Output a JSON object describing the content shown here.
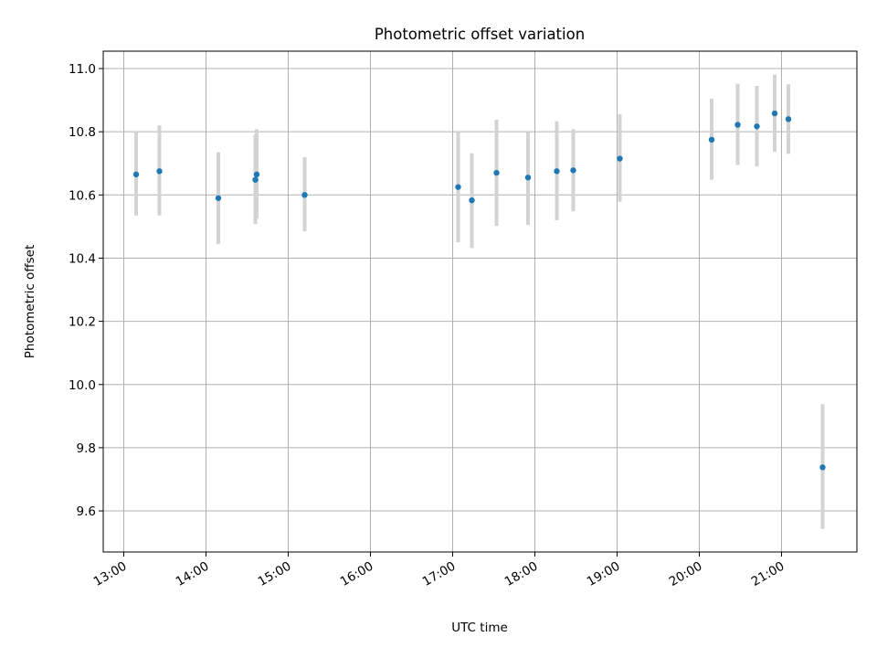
{
  "chart_data": {
    "type": "scatter",
    "title": "Photometric offset variation",
    "xlabel": "UTC time",
    "ylabel": "Photometric offset",
    "x_tick_labels": [
      "13:00",
      "14:00",
      "15:00",
      "16:00",
      "17:00",
      "18:00",
      "19:00",
      "20:00",
      "21:00"
    ],
    "y_tick_labels": [
      "9.6",
      "9.8",
      "10.0",
      "10.2",
      "10.4",
      "10.6",
      "10.8",
      "11.0"
    ],
    "y_ticks": [
      9.6,
      9.8,
      10.0,
      10.2,
      10.4,
      10.6,
      10.8,
      11.0
    ],
    "xlim": [
      "12:45",
      "21:55"
    ],
    "ylim": [
      9.47,
      11.055
    ],
    "grid": true,
    "error_bar_color": "#d3d3d3",
    "marker_color": "#1f77b4",
    "points": [
      {
        "x": "13:09",
        "y": 10.665,
        "ylo": 10.535,
        "yhi": 10.8
      },
      {
        "x": "13:26",
        "y": 10.675,
        "ylo": 10.535,
        "yhi": 10.82
      },
      {
        "x": "14:09",
        "y": 10.59,
        "ylo": 10.445,
        "yhi": 10.735
      },
      {
        "x": "14:36",
        "y": 10.648,
        "ylo": 10.508,
        "yhi": 10.79
      },
      {
        "x": "14:37",
        "y": 10.665,
        "ylo": 10.525,
        "yhi": 10.808
      },
      {
        "x": "15:12",
        "y": 10.6,
        "ylo": 10.485,
        "yhi": 10.72
      },
      {
        "x": "17:04",
        "y": 10.625,
        "ylo": 10.45,
        "yhi": 10.8
      },
      {
        "x": "17:14",
        "y": 10.583,
        "ylo": 10.432,
        "yhi": 10.732
      },
      {
        "x": "17:32",
        "y": 10.67,
        "ylo": 10.502,
        "yhi": 10.838
      },
      {
        "x": "17:55",
        "y": 10.655,
        "ylo": 10.505,
        "yhi": 10.8
      },
      {
        "x": "18:16",
        "y": 10.675,
        "ylo": 10.52,
        "yhi": 10.833
      },
      {
        "x": "18:28",
        "y": 10.678,
        "ylo": 10.548,
        "yhi": 10.808
      },
      {
        "x": "19:02",
        "y": 10.715,
        "ylo": 10.578,
        "yhi": 10.855
      },
      {
        "x": "20:09",
        "y": 10.775,
        "ylo": 10.648,
        "yhi": 10.905
      },
      {
        "x": "20:28",
        "y": 10.822,
        "ylo": 10.695,
        "yhi": 10.952
      },
      {
        "x": "20:42",
        "y": 10.817,
        "ylo": 10.69,
        "yhi": 10.945
      },
      {
        "x": "20:55",
        "y": 10.858,
        "ylo": 10.737,
        "yhi": 10.98
      },
      {
        "x": "21:05",
        "y": 10.84,
        "ylo": 10.73,
        "yhi": 10.95
      },
      {
        "x": "21:30",
        "y": 9.738,
        "ylo": 9.543,
        "yhi": 9.938
      }
    ]
  }
}
